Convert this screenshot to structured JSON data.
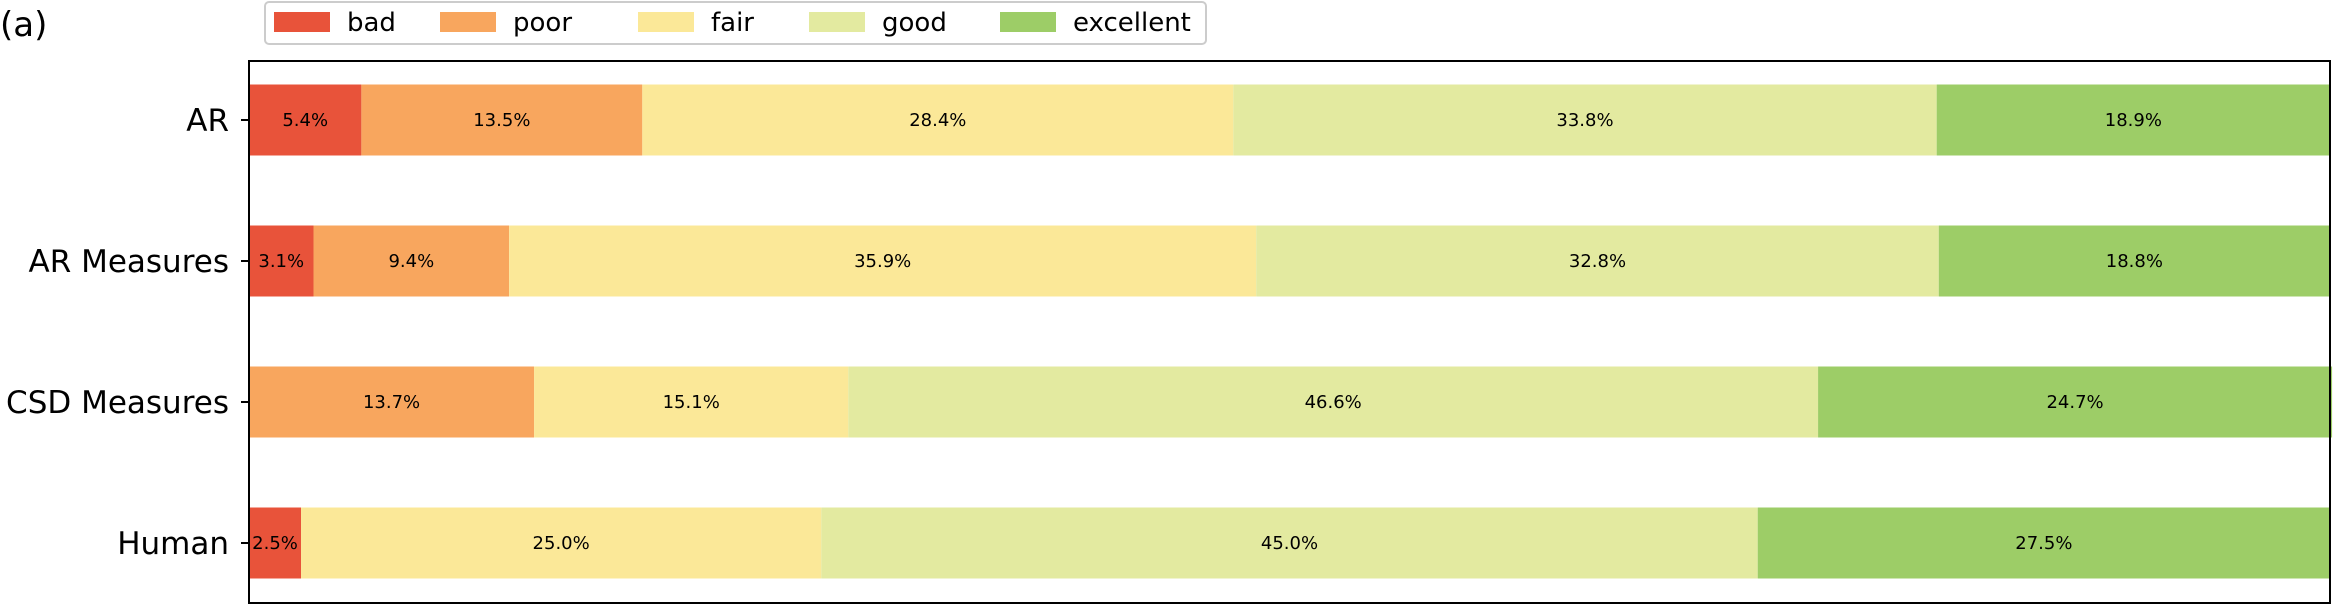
{
  "panel_label": "(a)",
  "chart_data": {
    "type": "bar",
    "orientation": "horizontal",
    "stacked": true,
    "normalized_percent": true,
    "title": "",
    "xlabel": "",
    "ylabel": "",
    "xlim": [
      0,
      100
    ],
    "grid": false,
    "legend_position": "top-left",
    "categories": [
      "AR",
      "AR Measures",
      "CSD Measures",
      "Human"
    ],
    "series": [
      {
        "name": "bad",
        "color": "#e8533a",
        "values": [
          5.4,
          3.1,
          0,
          2.5
        ],
        "labels": [
          "5.4%",
          "3.1%",
          "",
          "2.5%"
        ]
      },
      {
        "name": "poor",
        "color": "#f8a65e",
        "values": [
          13.5,
          9.4,
          13.7,
          0
        ],
        "labels": [
          "13.5%",
          "9.4%",
          "13.7%",
          ""
        ]
      },
      {
        "name": "fair",
        "color": "#fbe898",
        "values": [
          28.4,
          35.9,
          15.1,
          25.0
        ],
        "labels": [
          "28.4%",
          "35.9%",
          "15.1%",
          "25.0%"
        ]
      },
      {
        "name": "good",
        "color": "#e3eaa0",
        "values": [
          33.8,
          32.8,
          46.6,
          45.0
        ],
        "labels": [
          "33.8%",
          "32.8%",
          "46.6%",
          "45.0%"
        ]
      },
      {
        "name": "excellent",
        "color": "#9dcd67",
        "values": [
          18.9,
          18.8,
          24.7,
          27.5
        ],
        "labels": [
          "18.9%",
          "18.8%",
          "24.7%",
          "27.5%"
        ]
      }
    ]
  }
}
